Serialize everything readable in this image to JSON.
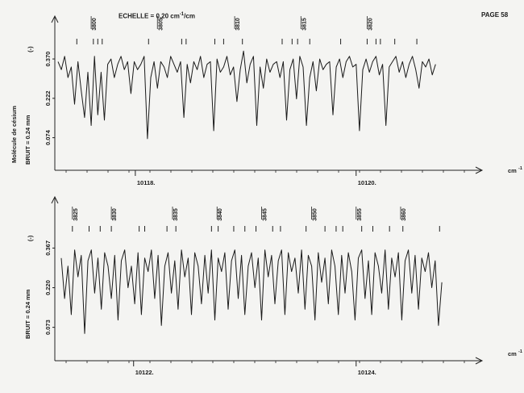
{
  "header": {
    "echelle_label": "ECHELLE = 0.20 cm",
    "echelle_exp": "-1",
    "echelle_unit": "/cm",
    "page_label": "PAGE 58"
  },
  "side_label": "Molécule de césium",
  "chart_data": [
    {
      "type": "line",
      "x_unit": "cm",
      "x_unit_exp": "-1",
      "xlim": [
        10117.3,
        10120.9
      ],
      "x_ticks": [
        10118.0,
        10120.0
      ],
      "x_tick_labels": [
        "10118.",
        "10120."
      ],
      "ylabel_unit": "(-)",
      "ylabel_noise": "BRUIT = 0.24 mm",
      "y_ticks": [
        0.074,
        0.222,
        0.37
      ],
      "y_tick_labels": [
        "0.074",
        "0.222",
        "0.370"
      ],
      "ylim": [
        0.0,
        0.44
      ],
      "line_labels": [
        {
          "label": "3800",
          "x": 10117.6
        },
        {
          "label": "3805",
          "x": 10118.2
        },
        {
          "label": "3810",
          "x": 10118.9
        },
        {
          "label": "3815",
          "x": 10119.5
        },
        {
          "label": "3820",
          "x": 10120.1
        }
      ],
      "line_markers": [
        10117.47,
        10117.62,
        10117.66,
        10117.7,
        10118.12,
        10118.42,
        10118.46,
        10118.72,
        10118.8,
        10118.97,
        10119.33,
        10119.42,
        10119.47,
        10119.58,
        10119.86,
        10120.1,
        10120.18,
        10120.22,
        10120.35,
        10120.55
      ],
      "x": [
        10117.3,
        10117.33,
        10117.36,
        10117.39,
        10117.42,
        10117.45,
        10117.48,
        10117.51,
        10117.54,
        10117.57,
        10117.6,
        10117.63,
        10117.66,
        10117.69,
        10117.72,
        10117.75,
        10117.78,
        10117.81,
        10117.84,
        10117.87,
        10117.9,
        10117.93,
        10117.96,
        10117.99,
        10118.02,
        10118.05,
        10118.08,
        10118.11,
        10118.14,
        10118.17,
        10118.2,
        10118.23,
        10118.26,
        10118.29,
        10118.32,
        10118.35,
        10118.38,
        10118.41,
        10118.44,
        10118.47,
        10118.5,
        10118.53,
        10118.56,
        10118.59,
        10118.62,
        10118.65,
        10118.68,
        10118.71,
        10118.74,
        10118.77,
        10118.8,
        10118.83,
        10118.86,
        10118.89,
        10118.92,
        10118.95,
        10118.98,
        10119.01,
        10119.04,
        10119.07,
        10119.1,
        10119.13,
        10119.16,
        10119.19,
        10119.22,
        10119.25,
        10119.28,
        10119.31,
        10119.34,
        10119.37,
        10119.4,
        10119.43,
        10119.46,
        10119.49,
        10119.52,
        10119.55,
        10119.58,
        10119.61,
        10119.64,
        10119.67,
        10119.7,
        10119.73,
        10119.76,
        10119.79,
        10119.82,
        10119.85,
        10119.88,
        10119.91,
        10119.94,
        10119.97,
        10120.0,
        10120.03,
        10120.06,
        10120.09,
        10120.12,
        10120.15,
        10120.18,
        10120.21,
        10120.24,
        10120.27,
        10120.3,
        10120.33,
        10120.36,
        10120.39,
        10120.42,
        10120.45,
        10120.48,
        10120.51,
        10120.54,
        10120.57,
        10120.6,
        10120.63,
        10120.66,
        10120.69,
        10120.72
      ],
      "y": [
        0.36,
        0.33,
        0.38,
        0.3,
        0.34,
        0.2,
        0.36,
        0.25,
        0.15,
        0.32,
        0.12,
        0.38,
        0.16,
        0.32,
        0.14,
        0.35,
        0.37,
        0.3,
        0.35,
        0.38,
        0.33,
        0.36,
        0.24,
        0.36,
        0.33,
        0.35,
        0.38,
        0.07,
        0.3,
        0.36,
        0.26,
        0.36,
        0.34,
        0.3,
        0.38,
        0.35,
        0.32,
        0.36,
        0.15,
        0.35,
        0.28,
        0.36,
        0.33,
        0.38,
        0.3,
        0.35,
        0.36,
        0.1,
        0.37,
        0.32,
        0.34,
        0.38,
        0.31,
        0.34,
        0.21,
        0.33,
        0.4,
        0.28,
        0.35,
        0.38,
        0.12,
        0.34,
        0.26,
        0.37,
        0.32,
        0.35,
        0.36,
        0.3,
        0.36,
        0.14,
        0.33,
        0.37,
        0.22,
        0.38,
        0.34,
        0.12,
        0.3,
        0.36,
        0.25,
        0.37,
        0.33,
        0.35,
        0.36,
        0.16,
        0.34,
        0.37,
        0.3,
        0.36,
        0.38,
        0.34,
        0.35,
        0.1,
        0.33,
        0.37,
        0.32,
        0.36,
        0.38,
        0.31,
        0.35,
        0.12,
        0.34,
        0.36,
        0.38,
        0.32,
        0.36,
        0.3,
        0.35,
        0.38,
        0.33,
        0.26,
        0.36,
        0.34,
        0.37,
        0.31,
        0.35
      ]
    },
    {
      "type": "line",
      "x_unit": "cm",
      "x_unit_exp": "-1",
      "xlim": [
        10121.35,
        10124.9
      ],
      "x_ticks": [
        10122.0,
        10124.0
      ],
      "x_tick_labels": [
        "10122.",
        "10124."
      ],
      "ylabel_unit": "(-)",
      "ylabel_noise": "BRUIT = 0.24 mm",
      "y_ticks": [
        0.073,
        0.22,
        0.367
      ],
      "y_tick_labels": [
        "0.073",
        "0.220",
        "0.367"
      ],
      "ylim": [
        0.0,
        0.44
      ],
      "line_labels": [
        {
          "label": "3825",
          "x": 10121.45
        },
        {
          "label": "3830",
          "x": 10121.8
        },
        {
          "label": "3835",
          "x": 10122.35
        },
        {
          "label": "3840",
          "x": 10122.75
        },
        {
          "label": "3845",
          "x": 10123.15
        },
        {
          "label": "3850",
          "x": 10123.6
        },
        {
          "label": "3855",
          "x": 10124.0
        },
        {
          "label": "3860",
          "x": 10124.4
        }
      ],
      "line_markers": [
        10121.45,
        10121.6,
        10121.7,
        10121.8,
        10122.05,
        10122.1,
        10122.3,
        10122.38,
        10122.7,
        10122.76,
        10122.9,
        10123.0,
        10123.1,
        10123.25,
        10123.32,
        10123.55,
        10123.72,
        10123.82,
        10123.88,
        10124.05,
        10124.15,
        10124.3,
        10124.42,
        10124.75
      ],
      "x": [
        10121.35,
        10121.38,
        10121.41,
        10121.44,
        10121.47,
        10121.5,
        10121.53,
        10121.56,
        10121.59,
        10121.62,
        10121.65,
        10121.68,
        10121.71,
        10121.74,
        10121.77,
        10121.8,
        10121.83,
        10121.86,
        10121.89,
        10121.92,
        10121.95,
        10121.98,
        10122.01,
        10122.04,
        10122.07,
        10122.1,
        10122.13,
        10122.16,
        10122.19,
        10122.22,
        10122.25,
        10122.28,
        10122.31,
        10122.34,
        10122.37,
        10122.4,
        10122.43,
        10122.46,
        10122.49,
        10122.52,
        10122.55,
        10122.58,
        10122.61,
        10122.64,
        10122.67,
        10122.7,
        10122.73,
        10122.76,
        10122.79,
        10122.82,
        10122.85,
        10122.88,
        10122.91,
        10122.94,
        10122.97,
        10123.0,
        10123.03,
        10123.06,
        10123.09,
        10123.12,
        10123.15,
        10123.18,
        10123.21,
        10123.24,
        10123.27,
        10123.3,
        10123.33,
        10123.36,
        10123.39,
        10123.42,
        10123.45,
        10123.48,
        10123.51,
        10123.54,
        10123.57,
        10123.6,
        10123.63,
        10123.66,
        10123.69,
        10123.72,
        10123.75,
        10123.78,
        10123.81,
        10123.84,
        10123.87,
        10123.9,
        10123.93,
        10123.96,
        10123.99,
        10124.02,
        10124.05,
        10124.08,
        10124.11,
        10124.14,
        10124.17,
        10124.2,
        10124.23,
        10124.26,
        10124.29,
        10124.32,
        10124.35,
        10124.38,
        10124.41,
        10124.44,
        10124.47,
        10124.5,
        10124.53,
        10124.56,
        10124.59,
        10124.62,
        10124.65,
        10124.68,
        10124.71,
        10124.74,
        10124.77
      ],
      "y": [
        0.33,
        0.18,
        0.3,
        0.12,
        0.36,
        0.26,
        0.34,
        0.05,
        0.32,
        0.36,
        0.2,
        0.33,
        0.14,
        0.35,
        0.3,
        0.18,
        0.34,
        0.1,
        0.32,
        0.36,
        0.22,
        0.3,
        0.16,
        0.35,
        0.12,
        0.33,
        0.28,
        0.36,
        0.18,
        0.34,
        0.08,
        0.3,
        0.35,
        0.2,
        0.32,
        0.14,
        0.36,
        0.26,
        0.33,
        0.12,
        0.35,
        0.3,
        0.16,
        0.34,
        0.2,
        0.36,
        0.1,
        0.33,
        0.28,
        0.35,
        0.14,
        0.32,
        0.36,
        0.18,
        0.34,
        0.12,
        0.3,
        0.35,
        0.22,
        0.33,
        0.1,
        0.36,
        0.26,
        0.34,
        0.16,
        0.32,
        0.36,
        0.12,
        0.35,
        0.28,
        0.33,
        0.2,
        0.36,
        0.14,
        0.34,
        0.3,
        0.1,
        0.35,
        0.24,
        0.33,
        0.16,
        0.36,
        0.3,
        0.12,
        0.34,
        0.2,
        0.35,
        0.28,
        0.1,
        0.33,
        0.36,
        0.18,
        0.32,
        0.12,
        0.35,
        0.3,
        0.2,
        0.36,
        0.14,
        0.33,
        0.26,
        0.35,
        0.1,
        0.32,
        0.36,
        0.2,
        0.34,
        0.14,
        0.33,
        0.28,
        0.35,
        0.22,
        0.32,
        0.08,
        0.24
      ]
    }
  ]
}
